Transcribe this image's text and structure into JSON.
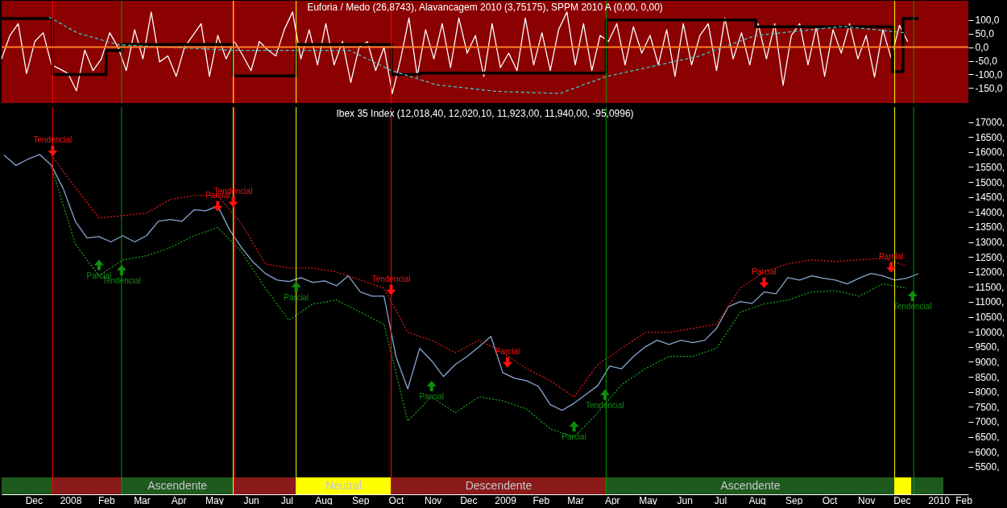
{
  "chart_data": [
    {
      "type": "line",
      "title": "Euforia / Medo (26,8743), Alavancagem 2010 (3,75175), SPPM 2010 A (0,00, 0,00)",
      "tick_labels": "y",
      "xlim": [
        "2007-11-19",
        "2010-02-10"
      ],
      "ylim": [
        -205,
        170
      ],
      "yticks": [
        {
          "value": 100,
          "label": "100,0"
        },
        {
          "value": 50,
          "label": "50,0"
        },
        {
          "value": 0,
          "label": "0,0"
        },
        {
          "value": -50,
          "label": "-50,0"
        },
        {
          "value": -100,
          "label": "-100,0"
        },
        {
          "value": -150,
          "label": "-150,0"
        }
      ],
      "ref_lines": [
        {
          "axis": "x",
          "value": "2008-01-01",
          "color": "#ff0000"
        },
        {
          "axis": "x",
          "value": "2008-02-28",
          "color": "#00a000"
        },
        {
          "axis": "x",
          "value": "2008-06-01",
          "color": "#ffff00"
        },
        {
          "axis": "x",
          "value": "2008-06-02",
          "color": "#ff0000"
        },
        {
          "axis": "x",
          "value": "2008-07-24",
          "color": "#ffff00"
        },
        {
          "axis": "x",
          "value": "2008-10-12",
          "color": "#ff0000"
        },
        {
          "axis": "x",
          "value": "2009-04-11",
          "color": "#00a000"
        },
        {
          "axis": "x",
          "value": "2009-12-10",
          "color": "#ffff00"
        },
        {
          "axis": "x",
          "value": "2009-12-26",
          "color": "#00a000"
        },
        {
          "axis": "y",
          "value": 0,
          "color": "#ff7f27"
        }
      ],
      "series": [
        {
          "color": "#ffffff",
          "x": [
            "2007-11-19",
            "2007-11-26",
            "2007-12-03",
            "2007-12-10",
            "2007-12-17",
            "2007-12-24",
            "2007-12-31",
            "2008-01-07",
            "2008-01-14",
            "2008-01-21",
            "2008-01-28",
            "2008-02-04",
            "2008-02-11",
            "2008-02-18",
            "2008-02-25",
            "2008-03-03",
            "2008-03-10",
            "2008-03-17",
            "2008-03-24",
            "2008-03-31",
            "2008-04-07",
            "2008-04-14",
            "2008-04-21",
            "2008-04-28",
            "2008-05-05",
            "2008-05-12",
            "2008-05-19",
            "2008-05-26",
            "2008-06-02",
            "2008-06-09",
            "2008-06-16",
            "2008-06-23",
            "2008-06-30",
            "2008-07-07",
            "2008-07-14",
            "2008-07-21",
            "2008-07-28",
            "2008-08-04",
            "2008-08-11",
            "2008-08-18",
            "2008-08-25",
            "2008-09-01",
            "2008-09-08",
            "2008-09-15",
            "2008-09-22",
            "2008-09-29",
            "2008-10-06",
            "2008-10-13",
            "2008-10-20",
            "2008-10-27",
            "2008-11-03",
            "2008-11-10",
            "2008-11-17",
            "2008-11-24",
            "2008-12-01",
            "2008-12-08",
            "2008-12-15",
            "2008-12-22",
            "2008-12-29",
            "2009-01-05",
            "2009-01-12",
            "2009-01-19",
            "2009-01-26",
            "2009-02-02",
            "2009-02-09",
            "2009-02-16",
            "2009-02-23",
            "2009-03-02",
            "2009-03-09",
            "2009-03-16",
            "2009-03-23",
            "2009-03-30",
            "2009-04-06",
            "2009-04-13",
            "2009-04-20",
            "2009-04-27",
            "2009-05-04",
            "2009-05-11",
            "2009-05-18",
            "2009-05-25",
            "2009-06-01",
            "2009-06-08",
            "2009-06-15",
            "2009-06-22",
            "2009-06-29",
            "2009-07-06",
            "2009-07-13",
            "2009-07-20",
            "2009-07-27",
            "2009-08-03",
            "2009-08-10",
            "2009-08-17",
            "2009-08-24",
            "2009-08-31",
            "2009-09-07",
            "2009-09-14",
            "2009-09-21",
            "2009-09-28",
            "2009-10-05",
            "2009-10-12",
            "2009-10-19",
            "2009-10-26",
            "2009-11-02",
            "2009-11-09",
            "2009-11-16",
            "2009-11-23",
            "2009-11-30",
            "2009-12-07",
            "2009-12-14",
            "2009-12-21"
          ],
          "values": [
            -43,
            43,
            86,
            -97,
            21,
            53,
            -65,
            -80,
            -97,
            -160,
            -11,
            -86,
            -43,
            53,
            0,
            -86,
            64,
            -43,
            129,
            -54,
            -32,
            -107,
            0,
            43,
            86,
            -107,
            43,
            -43,
            21,
            -30,
            -86,
            21,
            -10,
            -32,
            64,
            129,
            -43,
            64,
            -65,
            86,
            -65,
            21,
            -129,
            0,
            20,
            -86,
            0,
            -170,
            -43,
            107,
            -107,
            64,
            -43,
            86,
            -75,
            107,
            -22,
            43,
            -107,
            86,
            -75,
            -22,
            -86,
            107,
            -65,
            53,
            -86,
            64,
            129,
            -65,
            86,
            -86,
            43,
            21,
            86,
            -65,
            75,
            -22,
            43,
            -65,
            64,
            -107,
            86,
            -65,
            43,
            86,
            -86,
            107,
            -43,
            53,
            -65,
            86,
            -43,
            86,
            -140,
            43,
            86,
            -65,
            75,
            -107,
            64,
            -22,
            86,
            -43,
            43,
            -110,
            64,
            -40,
            80,
            20
          ]
        },
        {
          "type": "step",
          "color": "#000000",
          "x": [
            "2007-11-19",
            "2008-01-01",
            "2008-02-15",
            "2008-02-28",
            "2008-06-01",
            "2008-07-24",
            "2008-10-12",
            "2008-11-05",
            "2009-04-11",
            "2009-08-15",
            "2009-12-08",
            "2009-12-17",
            "2009-12-30"
          ],
          "values": [
            105,
            -100,
            -12,
            10,
            -105,
            10,
            -100,
            -95,
            100,
            75,
            -90,
            105,
            105
          ]
        },
        {
          "color": "#40c8c8",
          "line_style": "dashed",
          "x": [
            "2007-12-29",
            "2008-01-22",
            "2008-02-25",
            "2008-06-01",
            "2008-09-07",
            "2008-10-12",
            "2008-11-19",
            "2009-01-08",
            "2009-03-03",
            "2009-04-11",
            "2009-06-28",
            "2009-08-15",
            "2009-10-28",
            "2009-12-20"
          ],
          "values": [
            110,
            52,
            9,
            -12,
            -12,
            -85,
            -138,
            -162,
            -170,
            -108,
            -33,
            43,
            76,
            52
          ]
        }
      ]
    },
    {
      "type": "line",
      "title": "Ibex 35 Index (12,018,40, 12,020,10, 11,923,00, 11,940,00, -95,0996)",
      "xlim": [
        "2007-11-19",
        "2010-02-10"
      ],
      "ylim": [
        4580,
        17500
      ],
      "xticks": [
        {
          "value": "2007-12-16",
          "label": "Dec"
        },
        {
          "value": "2008-01-16",
          "label": "2008"
        },
        {
          "value": "2008-02-15",
          "label": "Feb"
        },
        {
          "value": "2008-03-16",
          "label": "Mar"
        },
        {
          "value": "2008-04-16",
          "label": "Apr"
        },
        {
          "value": "2008-05-16",
          "label": "May"
        },
        {
          "value": "2008-06-16",
          "label": "Jun"
        },
        {
          "value": "2008-07-16",
          "label": "Jul"
        },
        {
          "value": "2008-08-16",
          "label": "Aug"
        },
        {
          "value": "2008-09-16",
          "label": "Sep"
        },
        {
          "value": "2008-10-16",
          "label": "Oct"
        },
        {
          "value": "2008-11-16",
          "label": "Nov"
        },
        {
          "value": "2008-12-16",
          "label": "Dec"
        },
        {
          "value": "2009-01-16",
          "label": "2009"
        },
        {
          "value": "2009-02-15",
          "label": "Feb"
        },
        {
          "value": "2009-03-16",
          "label": "Mar"
        },
        {
          "value": "2009-04-16",
          "label": "Apr"
        },
        {
          "value": "2009-05-16",
          "label": "May"
        },
        {
          "value": "2009-06-16",
          "label": "Jun"
        },
        {
          "value": "2009-07-16",
          "label": "Jul"
        },
        {
          "value": "2009-08-16",
          "label": "Aug"
        },
        {
          "value": "2009-09-16",
          "label": "Sep"
        },
        {
          "value": "2009-10-16",
          "label": "Oct"
        },
        {
          "value": "2009-11-16",
          "label": "Nov"
        },
        {
          "value": "2009-12-16",
          "label": "Dec"
        },
        {
          "value": "2010-01-16",
          "label": "2010"
        },
        {
          "value": "2010-02-06",
          "label": "Feb"
        }
      ],
      "yticks": [
        {
          "value": 17000,
          "label": "17000,"
        },
        {
          "value": 16500,
          "label": "16500,"
        },
        {
          "value": 16000,
          "label": "16000,"
        },
        {
          "value": 15500,
          "label": "15500,"
        },
        {
          "value": 15000,
          "label": "15000,"
        },
        {
          "value": 14500,
          "label": "14500,"
        },
        {
          "value": 14000,
          "label": "14000,"
        },
        {
          "value": 13500,
          "label": "13500,"
        },
        {
          "value": 13000,
          "label": "13000,"
        },
        {
          "value": 12500,
          "label": "12500,"
        },
        {
          "value": 12000,
          "label": "12000,"
        },
        {
          "value": 11500,
          "label": "11500,"
        },
        {
          "value": 11000,
          "label": "11000,"
        },
        {
          "value": 10500,
          "label": "10500,"
        },
        {
          "value": 10000,
          "label": "10000,"
        },
        {
          "value": 9500,
          "label": "9500,"
        },
        {
          "value": 9000,
          "label": "9000,"
        },
        {
          "value": 8500,
          "label": "8500,"
        },
        {
          "value": 8000,
          "label": "8000,"
        },
        {
          "value": 7500,
          "label": "7500,"
        },
        {
          "value": 7000,
          "label": "7000,"
        },
        {
          "value": 6500,
          "label": "6500,"
        },
        {
          "value": 6000,
          "label": "6000,"
        },
        {
          "value": 5500,
          "label": "5500,"
        }
      ],
      "ref_lines": [
        {
          "axis": "x",
          "value": "2008-01-01",
          "color": "#ff0000"
        },
        {
          "axis": "x",
          "value": "2008-02-28",
          "color": "#00a000"
        },
        {
          "axis": "x",
          "value": "2008-06-01",
          "color": "#ffff00"
        },
        {
          "axis": "x",
          "value": "2008-06-02",
          "color": "#ff0000"
        },
        {
          "axis": "x",
          "value": "2008-07-24",
          "color": "#ffff00"
        },
        {
          "axis": "x",
          "value": "2008-10-12",
          "color": "#ff0000"
        },
        {
          "axis": "x",
          "value": "2009-04-11",
          "color": "#00a000"
        },
        {
          "axis": "x",
          "value": "2009-12-10",
          "color": "#ffff00"
        },
        {
          "axis": "x",
          "value": "2009-12-26",
          "color": "#00a000"
        }
      ],
      "bands": [
        {
          "axis": "x",
          "from": "2007-11-19",
          "to": "2008-01-01",
          "color": "#1e5a1e"
        },
        {
          "axis": "x",
          "from": "2008-01-01",
          "to": "2008-02-28",
          "color": "#8b1a1a"
        },
        {
          "axis": "x",
          "from": "2008-02-28",
          "to": "2008-06-01",
          "label": "Ascendente",
          "color": "#1e5a1e"
        },
        {
          "axis": "x",
          "from": "2008-06-01",
          "to": "2008-07-24",
          "color": "#8b1a1a"
        },
        {
          "axis": "x",
          "from": "2008-07-24",
          "to": "2008-10-12",
          "label": "Neutral",
          "color": "#ffff00"
        },
        {
          "axis": "x",
          "from": "2008-10-12",
          "to": "2009-04-11",
          "label": "Descendente",
          "color": "#8b1a1a"
        },
        {
          "axis": "x",
          "from": "2009-04-11",
          "to": "2009-12-10",
          "label": "Ascendente",
          "color": "#1e5a1e"
        },
        {
          "axis": "x",
          "from": "2009-12-10",
          "to": "2009-12-24",
          "color": "#ffff00"
        },
        {
          "axis": "x",
          "from": "2009-12-24",
          "to": "2010-01-20",
          "color": "#1e5a1e"
        }
      ],
      "annotations": [
        {
          "text": "Tendencial",
          "x": "2008-01-01",
          "y": 16400
        },
        {
          "text": "Parcial",
          "x": "2008-02-09",
          "y": 11870
        },
        {
          "text": "Tendencial",
          "x": "2008-02-28",
          "y": 11700
        },
        {
          "text": "Tendencial",
          "x": "2008-06-01",
          "y": 14690
        },
        {
          "text": "Parcial",
          "x": "2008-05-19",
          "y": 14550
        },
        {
          "text": "Parcial",
          "x": "2008-07-24",
          "y": 11140
        },
        {
          "text": "Tendencial",
          "x": "2008-10-12",
          "y": 11760
        },
        {
          "text": "Parcial",
          "x": "2008-11-15",
          "y": 7830
        },
        {
          "text": "Parcial",
          "x": "2009-01-18",
          "y": 9340
        },
        {
          "text": "Parcial",
          "x": "2009-03-15",
          "y": 6490
        },
        {
          "text": "Tendencial",
          "x": "2009-04-10",
          "y": 7540
        },
        {
          "text": "Parcial",
          "x": "2009-08-22",
          "y": 12000
        },
        {
          "text": "Parcial",
          "x": "2009-12-07",
          "y": 12510
        },
        {
          "text": "Tendencial",
          "x": "2009-12-25",
          "y": 10840
        }
      ],
      "series": [
        {
          "color": "#86a6cf",
          "x": [
            "2007-11-21",
            "2007-12-01",
            "2007-12-11",
            "2007-12-21",
            "2007-12-31",
            "2008-01-10",
            "2008-01-20",
            "2008-01-30",
            "2008-02-09",
            "2008-02-19",
            "2008-02-29",
            "2008-03-10",
            "2008-03-20",
            "2008-03-30",
            "2008-04-09",
            "2008-04-19",
            "2008-04-29",
            "2008-05-09",
            "2008-05-19",
            "2008-05-29",
            "2008-06-08",
            "2008-06-18",
            "2008-06-28",
            "2008-07-08",
            "2008-07-18",
            "2008-07-28",
            "2008-08-07",
            "2008-08-17",
            "2008-08-27",
            "2008-09-06",
            "2008-09-16",
            "2008-09-26",
            "2008-10-06",
            "2008-10-16",
            "2008-10-26",
            "2008-11-05",
            "2008-11-15",
            "2008-11-25",
            "2008-12-05",
            "2008-12-15",
            "2008-12-25",
            "2009-01-04",
            "2009-01-14",
            "2009-01-24",
            "2009-02-03",
            "2009-02-13",
            "2009-02-23",
            "2009-03-05",
            "2009-03-15",
            "2009-03-25",
            "2009-04-04",
            "2009-04-14",
            "2009-04-24",
            "2009-05-04",
            "2009-05-14",
            "2009-05-24",
            "2009-06-03",
            "2009-06-13",
            "2009-06-23",
            "2009-07-03",
            "2009-07-13",
            "2009-07-23",
            "2009-08-02",
            "2009-08-12",
            "2009-08-22",
            "2009-09-01",
            "2009-09-11",
            "2009-09-21",
            "2009-10-01",
            "2009-10-11",
            "2009-10-21",
            "2009-10-31",
            "2009-11-10",
            "2009-11-20",
            "2009-11-30",
            "2009-12-10",
            "2009-12-20",
            "2009-12-30"
          ],
          "values": [
            15900,
            15550,
            15760,
            15920,
            15550,
            14770,
            13690,
            13130,
            13180,
            13000,
            13210,
            13000,
            13210,
            13690,
            13750,
            13690,
            14070,
            14040,
            14200,
            13400,
            12810,
            12320,
            11950,
            11730,
            11680,
            11810,
            11650,
            11700,
            11540,
            11870,
            11330,
            11190,
            11190,
            9180,
            8100,
            9450,
            9040,
            8510,
            8910,
            9180,
            9500,
            9850,
            8640,
            8450,
            8370,
            8180,
            7570,
            7380,
            7620,
            7910,
            8210,
            8860,
            8770,
            9180,
            9500,
            9720,
            9580,
            9720,
            9640,
            9720,
            10120,
            10840,
            11010,
            10950,
            11330,
            11270,
            11810,
            11730,
            11870,
            11790,
            11730,
            11600,
            11790,
            11950,
            11870,
            11730,
            11790,
            11940
          ]
        },
        {
          "color": "#e01818",
          "line_style": "dotted",
          "x": [
            "2007-12-31",
            "2008-01-20",
            "2008-02-09",
            "2008-02-29",
            "2008-03-20",
            "2008-04-09",
            "2008-04-29",
            "2008-05-19",
            "2008-06-08",
            "2008-06-28",
            "2008-07-18",
            "2008-08-07",
            "2008-08-27",
            "2008-09-16",
            "2008-10-06",
            "2008-10-26",
            "2008-11-15",
            "2008-12-05",
            "2008-12-25",
            "2009-01-14",
            "2009-02-03",
            "2009-02-23",
            "2009-03-15",
            "2009-04-04",
            "2009-04-24",
            "2009-05-14",
            "2009-06-03",
            "2009-06-23",
            "2009-07-13",
            "2009-08-02",
            "2009-08-22",
            "2009-09-11",
            "2009-10-01",
            "2009-10-21",
            "2009-11-10",
            "2009-11-30",
            "2009-12-20"
          ],
          "values": [
            15900,
            14820,
            13800,
            13880,
            13960,
            14420,
            14550,
            14550,
            13610,
            12270,
            12130,
            12130,
            12000,
            11730,
            11460,
            9980,
            9720,
            9310,
            9720,
            9310,
            8770,
            8370,
            7830,
            8910,
            9450,
            9980,
            9980,
            10120,
            10250,
            11460,
            12000,
            12270,
            12400,
            12350,
            12400,
            12460,
            12190
          ]
        },
        {
          "color": "#18a018",
          "line_style": "dotted",
          "x": [
            "2007-12-31",
            "2008-01-20",
            "2008-02-09",
            "2008-02-29",
            "2008-03-20",
            "2008-04-09",
            "2008-04-29",
            "2008-05-19",
            "2008-06-08",
            "2008-06-28",
            "2008-07-18",
            "2008-08-07",
            "2008-08-27",
            "2008-09-16",
            "2008-10-06",
            "2008-10-26",
            "2008-11-15",
            "2008-12-05",
            "2008-12-25",
            "2009-01-14",
            "2009-02-03",
            "2009-02-23",
            "2009-03-15",
            "2009-04-04",
            "2009-04-24",
            "2009-05-14",
            "2009-06-03",
            "2009-06-23",
            "2009-07-13",
            "2009-08-02",
            "2009-08-22",
            "2009-09-11",
            "2009-10-01",
            "2009-10-21",
            "2009-11-10",
            "2009-11-30",
            "2009-12-20"
          ],
          "values": [
            15490,
            12940,
            11870,
            12400,
            12540,
            12810,
            13210,
            13480,
            12670,
            11460,
            10390,
            10930,
            11060,
            10660,
            10250,
            7030,
            7830,
            7300,
            7830,
            7700,
            7430,
            6760,
            6490,
            7300,
            8240,
            8770,
            9180,
            9180,
            9450,
            10660,
            10930,
            11060,
            11330,
            11380,
            11190,
            11600,
            11460
          ]
        }
      ]
    }
  ]
}
